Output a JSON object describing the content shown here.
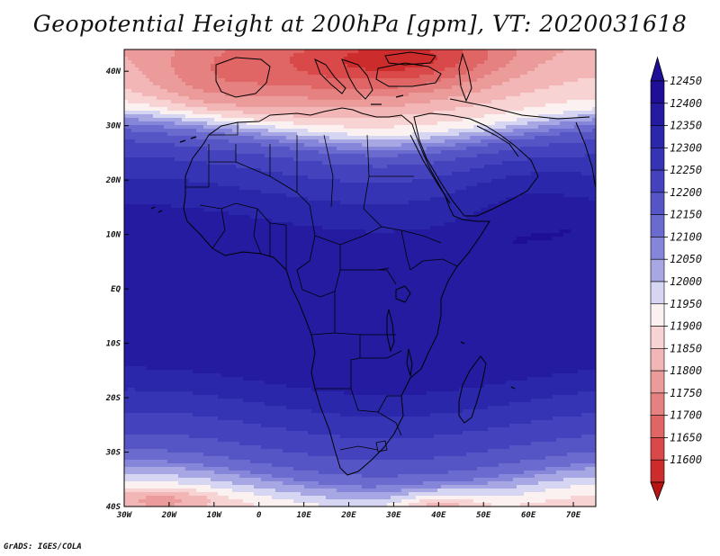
{
  "title": "Geopotential Height at 200hPa [gpm], VT: 2020031618",
  "footer": "GrADS: IGES/COLA",
  "map": {
    "lon_range": [
      -30,
      75
    ],
    "lat_range": [
      -40,
      44
    ],
    "x_ticks": [
      {
        "lon": -30,
        "label": "30W"
      },
      {
        "lon": -20,
        "label": "20W"
      },
      {
        "lon": -10,
        "label": "10W"
      },
      {
        "lon": 0,
        "label": "0"
      },
      {
        "lon": 10,
        "label": "10E"
      },
      {
        "lon": 20,
        "label": "20E"
      },
      {
        "lon": 30,
        "label": "30E"
      },
      {
        "lon": 40,
        "label": "40E"
      },
      {
        "lon": 50,
        "label": "50E"
      },
      {
        "lon": 60,
        "label": "60E"
      },
      {
        "lon": 70,
        "label": "70E"
      }
    ],
    "y_ticks": [
      {
        "lat": 40,
        "label": "40N"
      },
      {
        "lat": 30,
        "label": "30N"
      },
      {
        "lat": 20,
        "label": "20N"
      },
      {
        "lat": 10,
        "label": "10N"
      },
      {
        "lat": 0,
        "label": "EQ"
      },
      {
        "lat": -10,
        "label": "10S"
      },
      {
        "lat": -20,
        "label": "20S"
      },
      {
        "lat": -30,
        "label": "30S"
      },
      {
        "lat": -40,
        "label": "40S"
      }
    ],
    "lat_profile": [
      {
        "lat": 44,
        "value": 11850
      },
      {
        "lat": 40,
        "value": 11880
      },
      {
        "lat": 36,
        "value": 11910
      },
      {
        "lat": 33,
        "value": 11950
      },
      {
        "lat": 31,
        "value": 12000
      },
      {
        "lat": 30,
        "value": 12050
      },
      {
        "lat": 29,
        "value": 12100
      },
      {
        "lat": 28,
        "value": 12150
      },
      {
        "lat": 27,
        "value": 12200
      },
      {
        "lat": 25,
        "value": 12250
      },
      {
        "lat": 22,
        "value": 12300
      },
      {
        "lat": 18,
        "value": 12350
      },
      {
        "lat": 13,
        "value": 12400
      },
      {
        "lat": 9,
        "value": 12440
      },
      {
        "lat": -14,
        "value": 12440
      },
      {
        "lat": -17,
        "value": 12400
      },
      {
        "lat": -21,
        "value": 12350
      },
      {
        "lat": -25,
        "value": 12300
      },
      {
        "lat": -29,
        "value": 12250
      },
      {
        "lat": -32,
        "value": 12200
      },
      {
        "lat": -34,
        "value": 12150
      },
      {
        "lat": -35,
        "value": 12100
      },
      {
        "lat": -36.5,
        "value": 12050
      },
      {
        "lat": -38,
        "value": 12000
      },
      {
        "lat": -40,
        "value": 11950
      }
    ],
    "anomalies": [
      {
        "name": "mediterranean-low",
        "lon": 10,
        "lat": 40,
        "rx": 30,
        "ry": 8,
        "delta": -140
      },
      {
        "name": "black-sea-low",
        "lon": 35,
        "lat": 43,
        "rx": 20,
        "ry": 6,
        "delta": -160
      },
      {
        "name": "iberia-low",
        "lon": -12,
        "lat": 37,
        "rx": 14,
        "ry": 8,
        "delta": -60
      },
      {
        "name": "south-atlantic-low",
        "lon": -22,
        "lat": -39,
        "rx": 12,
        "ry": 2,
        "delta": -120
      },
      {
        "name": "southern-ocean-low",
        "lon": 40,
        "lat": -40,
        "rx": 9,
        "ry": 3,
        "delta": -130
      },
      {
        "name": "arabia-ridge",
        "lon": 58,
        "lat": 18,
        "rx": 16,
        "ry": 8,
        "delta": 40
      }
    ]
  },
  "colorbar": {
    "levels": [
      {
        "value": "12450",
        "color": "#1e0f96"
      },
      {
        "value": "12400",
        "color": "#241ba0"
      },
      {
        "value": "12350",
        "color": "#2a27aa"
      },
      {
        "value": "12300",
        "color": "#3534b4"
      },
      {
        "value": "12250",
        "color": "#4443bd"
      },
      {
        "value": "12200",
        "color": "#5655c6"
      },
      {
        "value": "12150",
        "color": "#6b6acf"
      },
      {
        "value": "12100",
        "color": "#8585d9"
      },
      {
        "value": "12050",
        "color": "#a7a7e4"
      },
      {
        "value": "12000",
        "color": "#d6d6f3"
      },
      {
        "value": "11950",
        "color": "#fcf1f1"
      },
      {
        "value": "11900",
        "color": "#f8d3d3"
      },
      {
        "value": "11850",
        "color": "#f2b6b6"
      },
      {
        "value": "11800",
        "color": "#ec9b9b"
      },
      {
        "value": "11750",
        "color": "#e68181"
      },
      {
        "value": "11700",
        "color": "#e06666"
      },
      {
        "value": "11650",
        "color": "#d94949"
      },
      {
        "value": "11600",
        "color": "#cd2c2c"
      }
    ],
    "below_color": "#b71414",
    "above_color": "#1e0f96"
  }
}
